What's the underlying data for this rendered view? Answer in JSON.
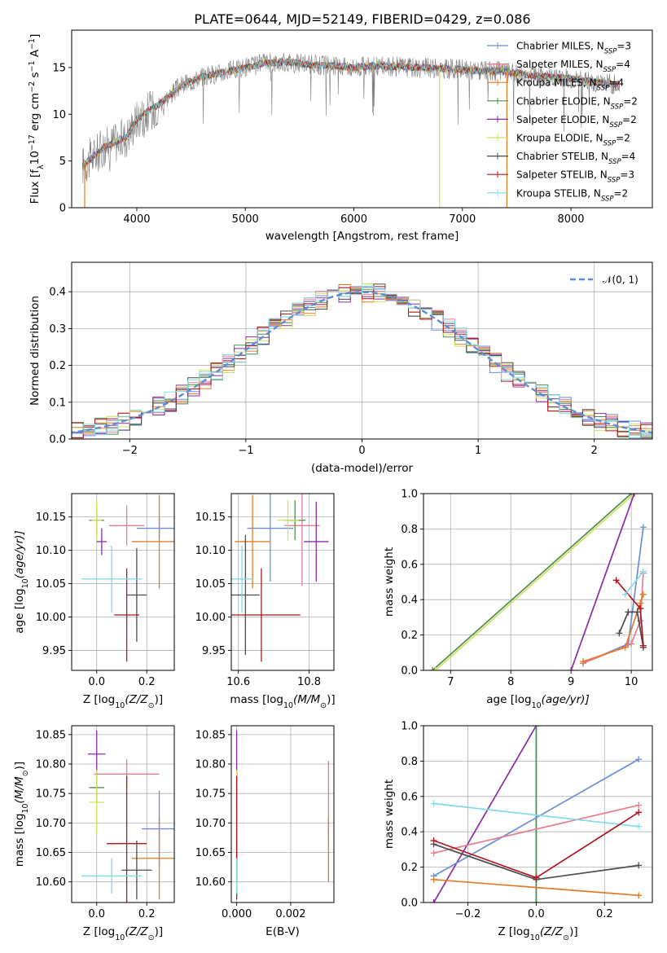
{
  "figure": {
    "title": "PLATE=0644, MJD=52149, FIBERID=0429, z=0.086"
  },
  "legend_entries": [
    {
      "label": "Chabrier MILES, N",
      "sub": "SSP",
      "tail": "=3",
      "color": "#6a8fd8"
    },
    {
      "label": "Salpeter MILES, N",
      "sub": "SSP",
      "tail": "=4",
      "color": "#e77c8e"
    },
    {
      "label": "Kroupa MILES, N",
      "sub": "SSP",
      "tail": "=4",
      "color": "#e07b28"
    },
    {
      "label": "Chabrier ELODIE, N",
      "sub": "SSP",
      "tail": "=2",
      "color": "#4f8d4f"
    },
    {
      "label": "Salpeter ELODIE, N",
      "sub": "SSP",
      "tail": "=2",
      "color": "#8e2aa7"
    },
    {
      "label": "Kroupa ELODIE, N",
      "sub": "SSP",
      "tail": "=2",
      "color": "#d2e060"
    },
    {
      "label": "Chabrier STELIB, N",
      "sub": "SSP",
      "tail": "=4",
      "color": "#4c4c4c"
    },
    {
      "label": "Salpeter STELIB, N",
      "sub": "SSP",
      "tail": "=3",
      "color": "#b0161c"
    },
    {
      "label": "Kroupa STELIB, N",
      "sub": "SSP",
      "tail": "=2",
      "color": "#80dbe6"
    }
  ],
  "chart_data": [
    {
      "id": "spectrum",
      "type": "line",
      "xlabel": "wavelength [Angstrom, rest frame]",
      "ylabel": "Flux [f",
      "ylabel_sub": "λ",
      "ylabel_tail": "10",
      "ylabel_sup1": "−17",
      "ylabel_tail2": " erg cm",
      "ylabel_sup2": "−2",
      "ylabel_tail3": " s",
      "ylabel_sup3": "−1",
      "ylabel_tail4": " A",
      "ylabel_sup4": "−1",
      "ylabel_end": "]",
      "xlim": [
        3400,
        8750
      ],
      "ylim": [
        0,
        19
      ],
      "xticks": [
        4000,
        5000,
        6000,
        7000,
        8000
      ],
      "yticks": [
        0,
        5,
        10,
        15
      ],
      "data_color": "#808080",
      "continuum": [
        [
          3500,
          4.5
        ],
        [
          3700,
          6.5
        ],
        [
          3900,
          7.5
        ],
        [
          4000,
          9.5
        ],
        [
          4200,
          11.0
        ],
        [
          4400,
          13.0
        ],
        [
          4600,
          14.0
        ],
        [
          4800,
          14.5
        ],
        [
          5000,
          15.0
        ],
        [
          5200,
          15.5
        ],
        [
          5400,
          15.6
        ],
        [
          5600,
          15.3
        ],
        [
          5800,
          15.2
        ],
        [
          6000,
          15.0
        ],
        [
          6200,
          15.2
        ],
        [
          6400,
          15.1
        ],
        [
          6600,
          15.0
        ],
        [
          6800,
          14.9
        ],
        [
          7000,
          14.8
        ],
        [
          7200,
          14.6
        ],
        [
          7400,
          14.6
        ],
        [
          7600,
          14.2
        ],
        [
          7800,
          14.0
        ],
        [
          8000,
          13.8
        ],
        [
          8200,
          13.5
        ],
        [
          8400,
          13.2
        ]
      ],
      "data_range": [
        3500,
        8450
      ],
      "model_dropouts": [
        {
          "x": 3520,
          "color": "#e07b28"
        },
        {
          "x": 6790,
          "color": "#d2e060"
        },
        {
          "x": 7410,
          "color": "#e07b28"
        }
      ]
    },
    {
      "id": "residual_hist",
      "type": "histogram",
      "xlabel": "(data-model)/error",
      "ylabel": "Normed distribution",
      "xlim": [
        -2.5,
        2.5
      ],
      "ylim": [
        0,
        0.48
      ],
      "xticks": [
        -2,
        -1,
        0,
        1,
        2
      ],
      "yticks": [
        0.0,
        0.1,
        0.2,
        0.3,
        0.4
      ],
      "reference_curve": {
        "label": "𝒩(0, 1)",
        "color": "#5b8ed6",
        "mean": 0,
        "sigma": 1
      }
    },
    {
      "id": "age_vs_Z",
      "type": "errorbar",
      "xlabel": "Z [log",
      "xlabel_sub": "10",
      "xlabel_tail": "(Z/Z",
      "xlabel_sub2": "⊙",
      "xlabel_end": ")]",
      "ylabel": "age  [log",
      "ylabel_sub": "10",
      "ylabel_tail": "(age/yr)]",
      "xlim": [
        -0.1,
        0.31
      ],
      "ylim": [
        9.92,
        10.185
      ],
      "xticks": [
        0.0,
        0.2
      ],
      "yticks": [
        9.95,
        10.0,
        10.05,
        10.1,
        10.15
      ],
      "points": [
        {
          "x": 0.25,
          "xerr": 0.09,
          "y": 10.133,
          "yerr": 0.015,
          "color": "#6a8fd8"
        },
        {
          "x": 0.12,
          "xerr": 0.07,
          "y": 10.137,
          "yerr": 0.03,
          "color": "#e77c8e"
        },
        {
          "x": 0.25,
          "xerr": 0.11,
          "y": 10.113,
          "yerr": 0.07,
          "color": "#e07b28"
        },
        {
          "x": 0.0,
          "xerr": 0.03,
          "y": 10.145,
          "yerr": 0.02,
          "color": "#4f8d4f"
        },
        {
          "x": 0.02,
          "xerr": 0.02,
          "y": 10.113,
          "yerr": 0.02,
          "color": "#8e2aa7"
        },
        {
          "x": 0.0,
          "xerr": 0.02,
          "y": 10.145,
          "yerr": 0.03,
          "color": "#d2e060"
        },
        {
          "x": 0.16,
          "xerr": 0.04,
          "y": 10.033,
          "yerr": 0.07,
          "color": "#4c4c4c"
        },
        {
          "x": 0.12,
          "xerr": 0.05,
          "y": 10.003,
          "yerr": 0.07,
          "color": "#b0161c"
        },
        {
          "x": 0.06,
          "xerr": 0.12,
          "y": 10.057,
          "yerr": 0.05,
          "color": "#80dbe6"
        }
      ]
    },
    {
      "id": "age_vs_mass",
      "type": "errorbar",
      "xlabel": "mass [log",
      "xlabel_sub": "10",
      "xlabel_tail": "(M/M",
      "xlabel_sub2": "⊙",
      "xlabel_end": ")]",
      "xlim": [
        10.58,
        10.87
      ],
      "ylim": [
        9.92,
        10.185
      ],
      "xticks": [
        10.6,
        10.8
      ],
      "yticks": [
        9.95,
        10.0,
        10.05,
        10.1,
        10.15
      ],
      "points": [
        {
          "x": 10.69,
          "xerr": 0.065,
          "y": 10.133,
          "yerr": 0.08,
          "color": "#6a8fd8"
        },
        {
          "x": 10.78,
          "xerr": 0.05,
          "y": 10.137,
          "yerr": 0.09,
          "color": "#e77c8e"
        },
        {
          "x": 10.64,
          "xerr": 0.05,
          "y": 10.113,
          "yerr": 0.07,
          "color": "#e07b28"
        },
        {
          "x": 10.76,
          "xerr": 0.03,
          "y": 10.145,
          "yerr": 0.03,
          "color": "#4f8d4f"
        },
        {
          "x": 10.82,
          "xerr": 0.035,
          "y": 10.113,
          "yerr": 0.06,
          "color": "#8e2aa7"
        },
        {
          "x": 10.74,
          "xerr": 0.03,
          "y": 10.145,
          "yerr": 0.03,
          "color": "#d2e060"
        },
        {
          "x": 10.62,
          "xerr": 0.04,
          "y": 10.033,
          "yerr": 0.09,
          "color": "#4c4c4c"
        },
        {
          "x": 10.665,
          "xerr": 0.11,
          "y": 10.003,
          "yerr": 0.07,
          "color": "#b0161c"
        },
        {
          "x": 10.61,
          "xerr": 0.03,
          "y": 10.057,
          "yerr": 0.05,
          "color": "#80dbe6"
        }
      ]
    },
    {
      "id": "weight_vs_age",
      "type": "line",
      "xlabel": "age  [log",
      "xlabel_sub": "10",
      "xlabel_tail": "(age/yr)]",
      "ylabel": "mass weight",
      "xlim": [
        6.55,
        10.35
      ],
      "ylim": [
        0,
        1
      ],
      "xticks": [
        7,
        8,
        9,
        10
      ],
      "yticks": [
        0.0,
        0.2,
        0.4,
        0.6,
        0.8,
        1.0
      ],
      "series": [
        {
          "color": "#4f8d4f",
          "points": [
            [
              6.7,
              0.0
            ],
            [
              10.0,
              1.0
            ]
          ]
        },
        {
          "color": "#d2e060",
          "points": [
            [
              6.75,
              0.0
            ],
            [
              10.05,
              1.0
            ]
          ]
        },
        {
          "color": "#8e2aa7",
          "points": [
            [
              9.0,
              0.0
            ],
            [
              10.05,
              1.0
            ]
          ]
        },
        {
          "color": "#6a8fd8",
          "points": [
            [
              9.2,
              0.04
            ],
            [
              9.95,
              0.15
            ],
            [
              10.2,
              0.81
            ]
          ]
        },
        {
          "color": "#e77c8e",
          "points": [
            [
              9.2,
              0.04
            ],
            [
              10.0,
              0.15
            ],
            [
              10.15,
              0.28
            ],
            [
              10.2,
              0.55
            ]
          ]
        },
        {
          "color": "#e07b28",
          "points": [
            [
              9.2,
              0.05
            ],
            [
              9.9,
              0.13
            ],
            [
              10.15,
              0.38
            ],
            [
              10.2,
              0.43
            ]
          ]
        },
        {
          "color": "#4c4c4c",
          "points": [
            [
              9.8,
              0.21
            ],
            [
              9.95,
              0.33
            ],
            [
              10.1,
              0.33
            ],
            [
              10.2,
              0.13
            ]
          ]
        },
        {
          "color": "#b0161c",
          "points": [
            [
              9.75,
              0.51
            ],
            [
              10.15,
              0.35
            ],
            [
              10.2,
              0.14
            ]
          ]
        },
        {
          "color": "#80dbe6",
          "points": [
            [
              9.9,
              0.43
            ],
            [
              10.2,
              0.56
            ]
          ]
        }
      ]
    },
    {
      "id": "mass_vs_Z",
      "type": "errorbar",
      "xlabel": "Z [log",
      "xlabel_sub": "10",
      "xlabel_tail": "(Z/Z",
      "xlabel_sub2": "⊙",
      "xlabel_end": ")]",
      "ylabel": "mass [log",
      "ylabel_sub": "10",
      "ylabel_tail": "(M/M",
      "ylabel_sub2": "⊙",
      "ylabel_end": ")]",
      "xlim": [
        -0.1,
        0.31
      ],
      "ylim": [
        10.565,
        10.865
      ],
      "xticks": [
        0.0,
        0.2
      ],
      "yticks": [
        10.6,
        10.65,
        10.7,
        10.75,
        10.8,
        10.85
      ],
      "points": [
        {
          "x": 0.25,
          "xerr": 0.07,
          "y": 10.69,
          "yerr": 0.065,
          "color": "#6a8fd8"
        },
        {
          "x": 0.12,
          "xerr": 0.13,
          "y": 10.783,
          "yerr": 0.025,
          "color": "#e77c8e"
        },
        {
          "x": 0.25,
          "xerr": 0.11,
          "y": 10.64,
          "yerr": 0.07,
          "color": "#e07b28"
        },
        {
          "x": 0.0,
          "xerr": 0.03,
          "y": 10.76,
          "yerr": 0.025,
          "color": "#4f8d4f"
        },
        {
          "x": 0.0,
          "xerr": 0.035,
          "y": 10.817,
          "yerr": 0.04,
          "color": "#8e2aa7"
        },
        {
          "x": 0.0,
          "xerr": 0.03,
          "y": 10.735,
          "yerr": 0.055,
          "color": "#d2e060"
        },
        {
          "x": 0.16,
          "xerr": 0.06,
          "y": 10.62,
          "yerr": 0.05,
          "color": "#4c4c4c"
        },
        {
          "x": 0.12,
          "xerr": 0.08,
          "y": 10.665,
          "yerr": 0.115,
          "color": "#b0161c"
        },
        {
          "x": 0.06,
          "xerr": 0.12,
          "y": 10.61,
          "yerr": 0.03,
          "color": "#80dbe6"
        }
      ]
    },
    {
      "id": "mass_vs_ebv",
      "type": "errorbar",
      "xlabel": "E(B-V)",
      "xlim": [
        -0.0002,
        0.0036
      ],
      "ylim": [
        10.565,
        10.865
      ],
      "xticks": [
        0.0,
        0.002
      ],
      "yticks": [
        10.6,
        10.65,
        10.7,
        10.75,
        10.8,
        10.85
      ],
      "points": [
        {
          "x": 0.0,
          "xerr": 0.0,
          "y": 10.69,
          "yerr": 0.065,
          "color": "#6a8fd8"
        },
        {
          "x": 0.0034,
          "xerr": 0.0,
          "y": 10.74,
          "yerr": 0.065,
          "color": "#e77c8e"
        },
        {
          "x": 0.0034,
          "xerr": 0.0,
          "y": 10.655,
          "yerr": 0.055,
          "color": "#e07b28"
        },
        {
          "x": 0.0,
          "xerr": 0.0,
          "y": 10.76,
          "yerr": 0.025,
          "color": "#4f8d4f"
        },
        {
          "x": 0.0,
          "xerr": 0.0,
          "y": 10.817,
          "yerr": 0.04,
          "color": "#8e2aa7"
        },
        {
          "x": 0.0,
          "xerr": 0.0,
          "y": 10.735,
          "yerr": 0.055,
          "color": "#d2e060"
        },
        {
          "x": 0.0,
          "xerr": 0.0,
          "y": 10.62,
          "yerr": 0.05,
          "color": "#4c4c4c"
        },
        {
          "x": 0.0,
          "xerr": 0.0,
          "y": 10.69,
          "yerr": 0.09,
          "color": "#b0161c"
        },
        {
          "x": 0.0,
          "xerr": 0.0,
          "y": 10.61,
          "yerr": 0.03,
          "color": "#80dbe6"
        }
      ]
    },
    {
      "id": "weight_vs_Z",
      "type": "line",
      "xlabel": "Z [log",
      "xlabel_sub": "10",
      "xlabel_tail": "(Z/Z",
      "xlabel_sub2": "⊙",
      "xlabel_end": ")]",
      "ylabel": "mass weight",
      "xlim": [
        -0.33,
        0.34
      ],
      "ylim": [
        0,
        1
      ],
      "xticks": [
        -0.2,
        0.0,
        0.2
      ],
      "yticks": [
        0.0,
        0.2,
        0.4,
        0.6,
        0.8,
        1.0
      ],
      "series": [
        {
          "color": "#8e2aa7",
          "points": [
            [
              -0.3,
              0.0
            ],
            [
              0.0,
              1.0
            ]
          ]
        },
        {
          "color": "#d2e060",
          "points": [
            [
              0.0,
              0.0
            ],
            [
              0.0,
              1.0
            ]
          ]
        },
        {
          "color": "#4f8d4f",
          "points": [
            [
              0.0,
              0.0
            ],
            [
              0.0,
              1.0
            ]
          ]
        },
        {
          "color": "#6a8fd8",
          "points": [
            [
              -0.3,
              0.15
            ],
            [
              0.3,
              0.81
            ]
          ]
        },
        {
          "color": "#e77c8e",
          "points": [
            [
              -0.3,
              0.28
            ],
            [
              0.3,
              0.55
            ]
          ]
        },
        {
          "color": "#80dbe6",
          "points": [
            [
              -0.3,
              0.56
            ],
            [
              0.3,
              0.43
            ]
          ]
        },
        {
          "color": "#e07b28",
          "points": [
            [
              -0.3,
              0.13
            ],
            [
              0.3,
              0.04
            ]
          ]
        },
        {
          "color": "#4c4c4c",
          "points": [
            [
              -0.3,
              0.33
            ],
            [
              0.0,
              0.13
            ],
            [
              0.3,
              0.21
            ]
          ]
        },
        {
          "color": "#b0161c",
          "points": [
            [
              -0.3,
              0.35
            ],
            [
              0.0,
              0.14
            ],
            [
              0.3,
              0.51
            ]
          ]
        }
      ]
    }
  ]
}
